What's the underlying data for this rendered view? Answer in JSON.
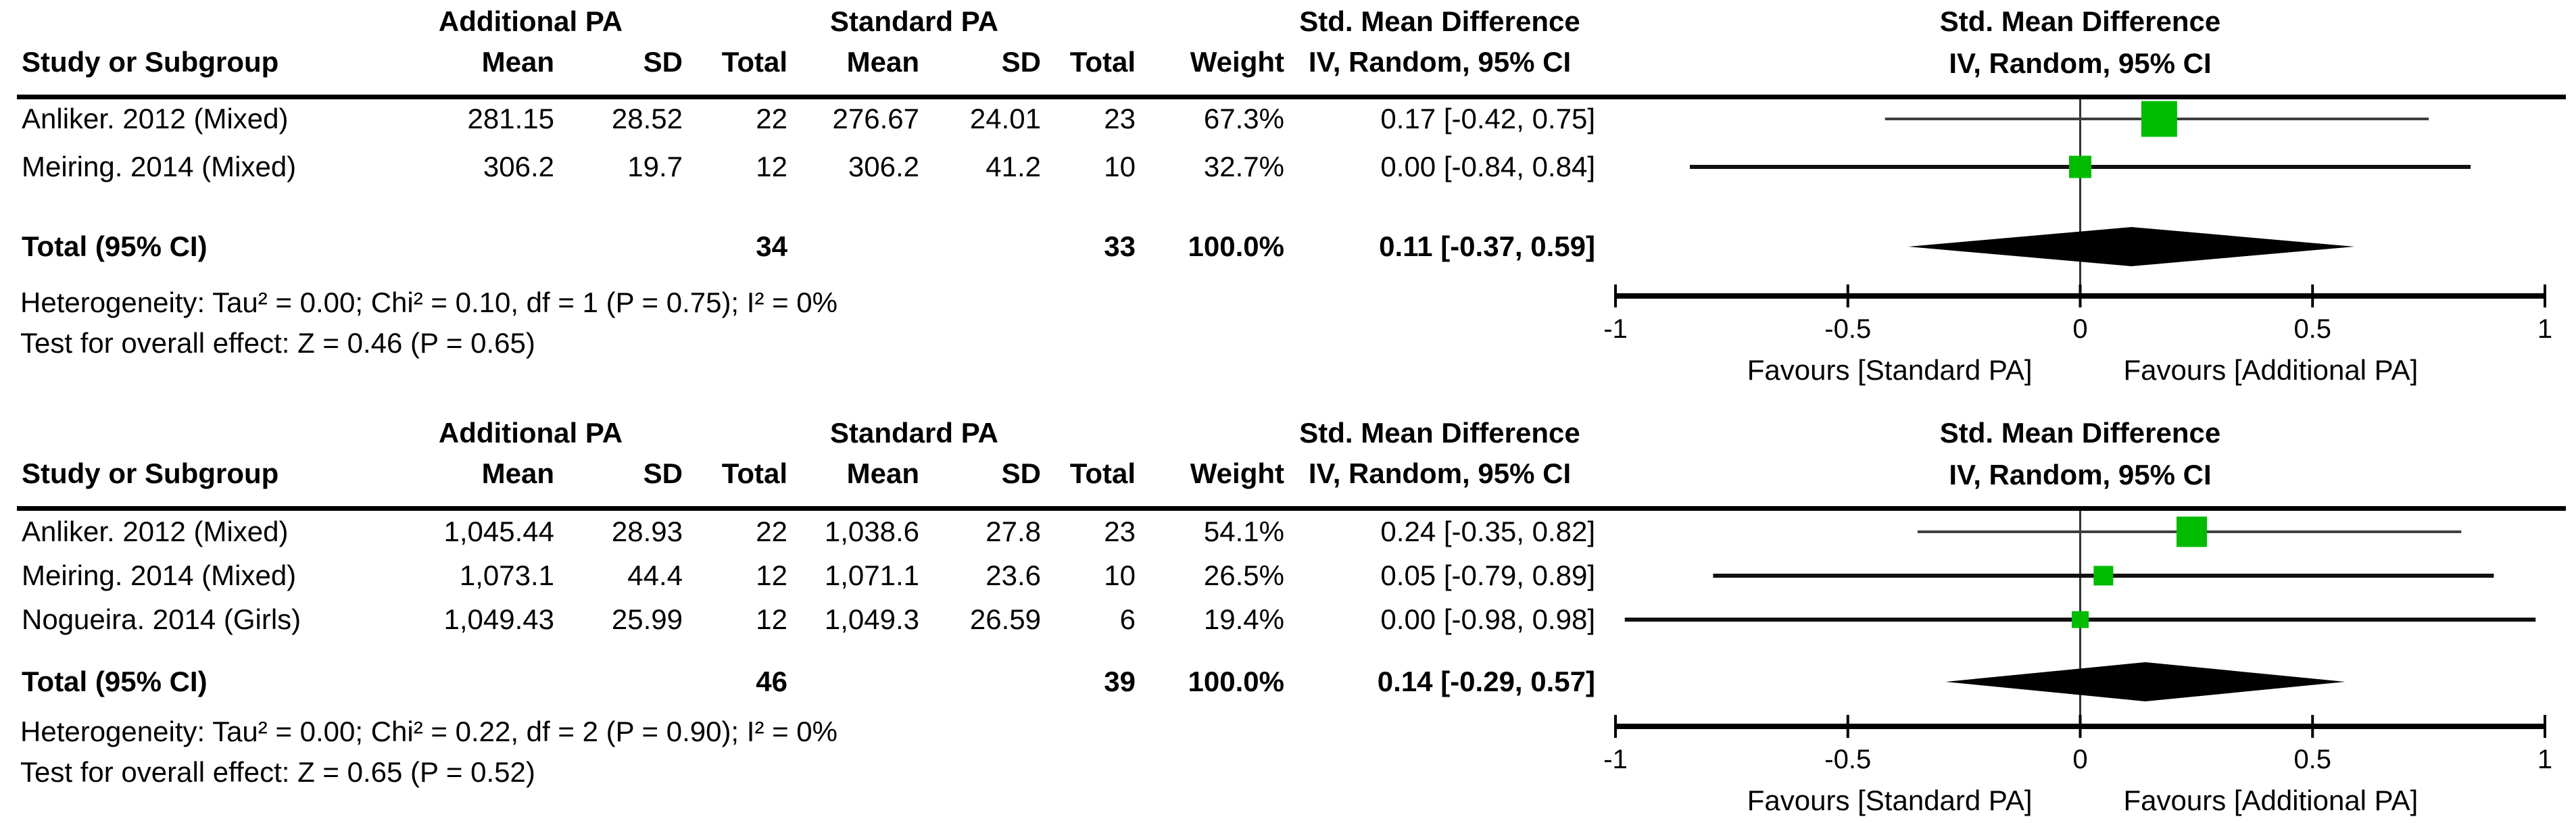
{
  "group_headers": {
    "additional": "Additional PA",
    "standard": "Standard PA",
    "smd": "Std. Mean Difference"
  },
  "plot_header": {
    "line1": "Std. Mean Difference",
    "line2": "IV, Random, 95% CI"
  },
  "columns": {
    "study": "Study or Subgroup",
    "mean": "Mean",
    "sd": "SD",
    "total": "Total",
    "weight": "Weight",
    "ci": "IV, Random, 95% CI"
  },
  "axis": {
    "tick_labels": [
      "-1",
      "-0.5",
      "0",
      "0.5",
      "1"
    ],
    "favours_left": "Favours [Standard PA]",
    "favours_right": "Favours [Additional PA]"
  },
  "colors": {
    "square": "#00BB00",
    "diamond": "#000000",
    "axis": "#000000",
    "ci_line_first": "#3f3f3f",
    "ci_line": "#101010"
  },
  "chart_data": [
    {
      "type": "forest",
      "axis_range": [
        -1,
        1
      ],
      "ticks": [
        -1,
        -0.5,
        0,
        0.5,
        1
      ],
      "studies": [
        {
          "name": "Anliker. 2012 (Mixed)",
          "mean_additional": "281.15",
          "sd_additional": "28.52",
          "total_additional": "22",
          "mean_standard": "276.67",
          "sd_standard": "24.01",
          "total_standard": "23",
          "weight": "67.3%",
          "weight_pct": 67.3,
          "smd_label": "0.17 [-0.42, 0.75]",
          "smd": 0.17,
          "ci_low": -0.42,
          "ci_high": 0.75
        },
        {
          "name": "Meiring. 2014 (Mixed)",
          "mean_additional": "306.2",
          "sd_additional": "19.7",
          "total_additional": "12",
          "mean_standard": "306.2",
          "sd_standard": "41.2",
          "total_standard": "10",
          "weight": "32.7%",
          "weight_pct": 32.7,
          "smd_label": "0.00 [-0.84, 0.84]",
          "smd": 0.0,
          "ci_low": -0.84,
          "ci_high": 0.84
        }
      ],
      "total": {
        "label": "Total (95% CI)",
        "total_additional": "34",
        "total_standard": "33",
        "weight": "100.0%",
        "smd_label": "0.11 [-0.37, 0.59]",
        "smd": 0.11,
        "ci_low": -0.37,
        "ci_high": 0.59
      },
      "heterogeneity": "Heterogeneity: Tau² = 0.00; Chi² = 0.10, df = 1 (P = 0.75); I² = 0%",
      "overall_test": "Test for overall effect: Z = 0.46 (P = 0.65)"
    },
    {
      "type": "forest",
      "axis_range": [
        -1,
        1
      ],
      "ticks": [
        -1,
        -0.5,
        0,
        0.5,
        1
      ],
      "studies": [
        {
          "name": "Anliker. 2012 (Mixed)",
          "mean_additional": "1,045.44",
          "sd_additional": "28.93",
          "total_additional": "22",
          "mean_standard": "1,038.6",
          "sd_standard": "27.8",
          "total_standard": "23",
          "weight": "54.1%",
          "weight_pct": 54.1,
          "smd_label": "0.24 [-0.35, 0.82]",
          "smd": 0.24,
          "ci_low": -0.35,
          "ci_high": 0.82
        },
        {
          "name": "Meiring. 2014 (Mixed)",
          "mean_additional": "1,073.1",
          "sd_additional": "44.4",
          "total_additional": "12",
          "mean_standard": "1,071.1",
          "sd_standard": "23.6",
          "total_standard": "10",
          "weight": "26.5%",
          "weight_pct": 26.5,
          "smd_label": "0.05 [-0.79, 0.89]",
          "smd": 0.05,
          "ci_low": -0.79,
          "ci_high": 0.89
        },
        {
          "name": "Nogueira. 2014 (Girls)",
          "mean_additional": "1,049.43",
          "sd_additional": "25.99",
          "total_additional": "12",
          "mean_standard": "1,049.3",
          "sd_standard": "26.59",
          "total_standard": "6",
          "weight": "19.4%",
          "weight_pct": 19.4,
          "smd_label": "0.00 [-0.98, 0.98]",
          "smd": 0.0,
          "ci_low": -0.98,
          "ci_high": 0.98
        }
      ],
      "total": {
        "label": "Total (95% CI)",
        "total_additional": "46",
        "total_standard": "39",
        "weight": "100.0%",
        "smd_label": "0.14 [-0.29, 0.57]",
        "smd": 0.14,
        "ci_low": -0.29,
        "ci_high": 0.57
      },
      "heterogeneity": "Heterogeneity: Tau² = 0.00; Chi² = 0.22, df = 2 (P = 0.90); I² = 0%",
      "overall_test": "Test for overall effect: Z = 0.65 (P = 0.52)"
    }
  ]
}
